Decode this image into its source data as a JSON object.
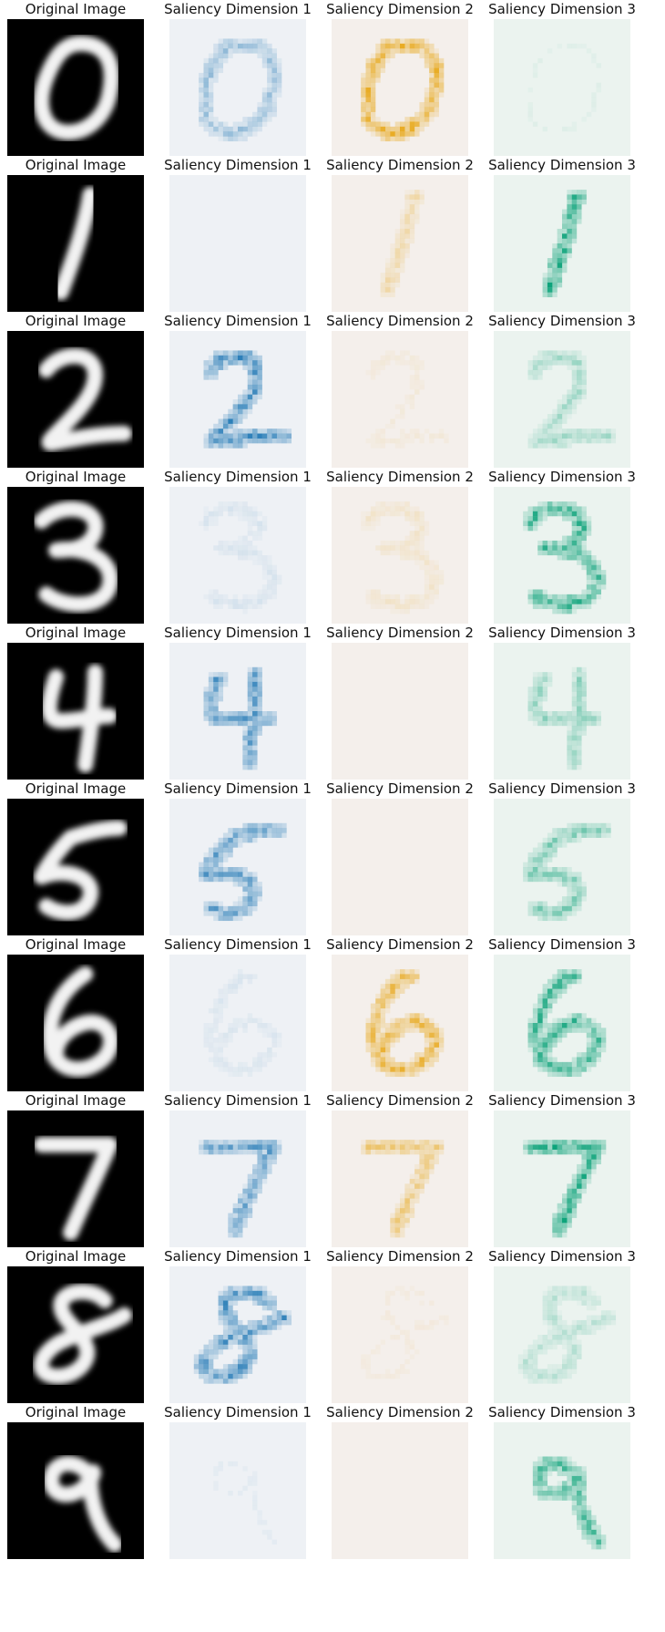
{
  "panel_titles": {
    "original": "Original Image",
    "dim1": "Saliency Dimension 1",
    "dim2": "Saliency Dimension 2",
    "dim3": "Saliency Dimension 3"
  },
  "rows": [
    {
      "digit": 0,
      "dim_intensity": [
        0.45,
        0.85,
        0.05
      ]
    },
    {
      "digit": 1,
      "dim_intensity": [
        0.02,
        0.3,
        0.95
      ]
    },
    {
      "digit": 2,
      "dim_intensity": [
        0.95,
        0.08,
        0.35
      ]
    },
    {
      "digit": 3,
      "dim_intensity": [
        0.12,
        0.15,
        0.85
      ]
    },
    {
      "digit": 4,
      "dim_intensity": [
        0.85,
        0.0,
        0.45
      ]
    },
    {
      "digit": 5,
      "dim_intensity": [
        0.8,
        0.0,
        0.55
      ]
    },
    {
      "digit": 6,
      "dim_intensity": [
        0.1,
        0.8,
        0.85
      ]
    },
    {
      "digit": 7,
      "dim_intensity": [
        0.8,
        0.55,
        0.95
      ]
    },
    {
      "digit": 8,
      "dim_intensity": [
        0.9,
        0.06,
        0.25
      ]
    },
    {
      "digit": 9,
      "dim_intensity": [
        0.05,
        0.0,
        0.75
      ]
    }
  ],
  "colors": {
    "original_bg": "#000000",
    "original_stroke": "#f2f2f2",
    "dim1_bg": "#eef1f5",
    "dim1_ink": "#1f77b4",
    "dim2_bg": "#f4efeb",
    "dim2_ink": "#e69f00",
    "dim3_bg": "#ebf3ef",
    "dim3_ink": "#009e73"
  }
}
